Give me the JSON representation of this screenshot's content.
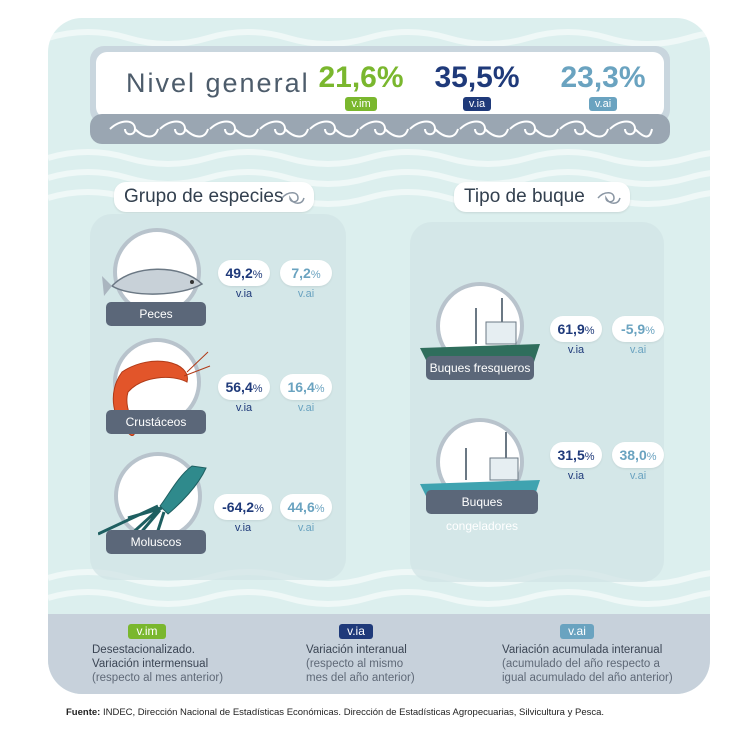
{
  "header": {
    "title": "Nivel general",
    "metrics": [
      {
        "value": "21,6%",
        "tag": "v.im"
      },
      {
        "value": "35,5%",
        "tag": "v.ia"
      },
      {
        "value": "23,3%",
        "tag": "v.ai"
      }
    ]
  },
  "groups": {
    "title": "Grupo de especies",
    "items": [
      {
        "label": "Peces",
        "via": "49,2",
        "vai": "7,2",
        "via_tag": "v.ia",
        "vai_tag": "v.ai"
      },
      {
        "label": "Crustáceos",
        "via": "56,4",
        "vai": "16,4",
        "via_tag": "v.ia",
        "vai_tag": "v.ai"
      },
      {
        "label": "Moluscos",
        "via": "-64,2",
        "vai": "44,6",
        "via_tag": "v.ia",
        "vai_tag": "v.ai"
      }
    ]
  },
  "ships": {
    "title": "Tipo de buque",
    "items": [
      {
        "label": "Buques fresqueros",
        "via": "61,9",
        "vai": "-5,9",
        "via_tag": "v.ia",
        "vai_tag": "v.ai"
      },
      {
        "label": "Buques congeladores",
        "via": "31,5",
        "vai": "38,0",
        "via_tag": "v.ia",
        "vai_tag": "v.ai"
      }
    ]
  },
  "percent": "%",
  "legend": [
    {
      "tag": "v.im",
      "title": "Desestacionalizado.",
      "line2": "Variación intermensual",
      "line3": "(respecto al mes anterior)"
    },
    {
      "tag": "v.ia",
      "title": "Variación interanual",
      "line2": "(respecto al mismo",
      "line3": "mes del año anterior)"
    },
    {
      "tag": "v.ai",
      "title": "Variación acumulada interanual",
      "line2": "(acumulado del año respecto a",
      "line3": "igual acumulado del año anterior)"
    }
  ],
  "source": {
    "label": "Fuente:",
    "text": "INDEC, Dirección Nacional de Estadísticas Económicas. Dirección de Estadísticas Agropecuarias, Silvicultura y Pesca."
  },
  "colors": {
    "vim": "#7ab72e",
    "via": "#1f3a7a",
    "vai": "#6aa3c0",
    "label_bg": "#5b6779"
  }
}
